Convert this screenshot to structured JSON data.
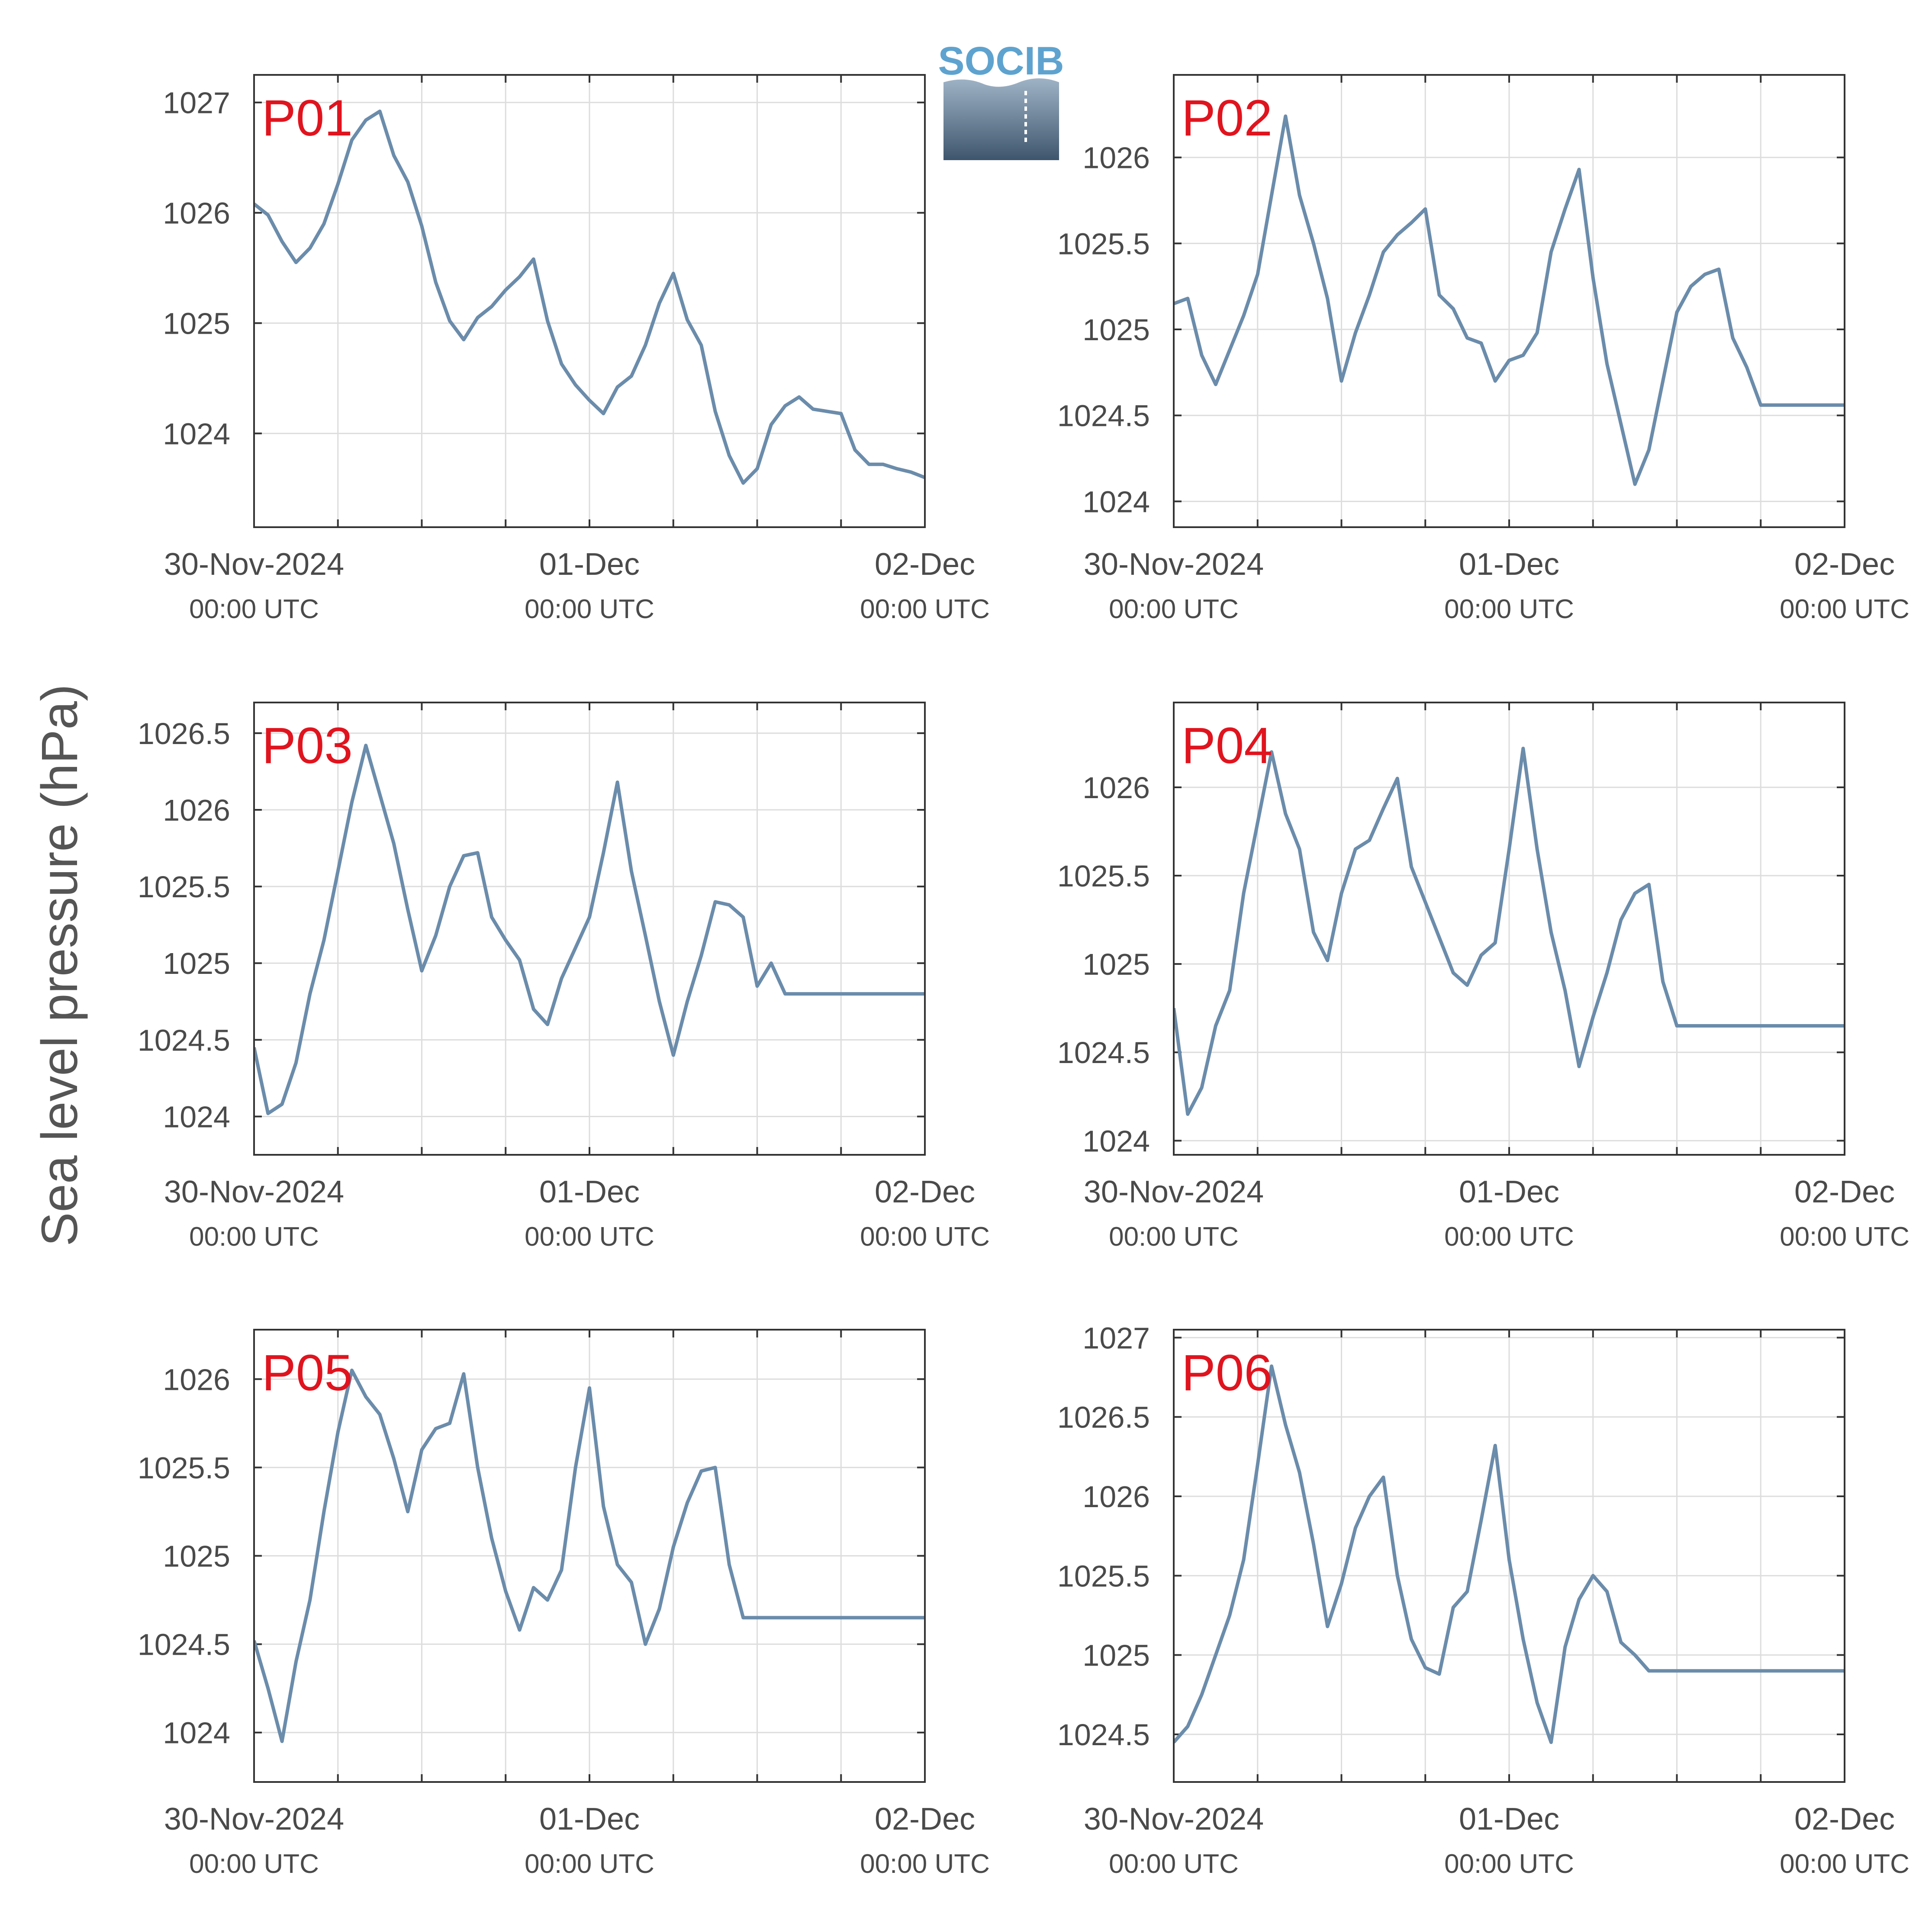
{
  "figure": {
    "ylabel": "Sea level pressure (hPa)",
    "logo_text": "SOCIB",
    "line_color": "#6b8cab",
    "label_color": "#e0141e",
    "grid_color": "#dddddd",
    "axis_color": "#333333"
  },
  "chart_data": [
    {
      "type": "line",
      "title": "P01",
      "x_range": [
        "2024-11-30 00:00",
        "2024-12-02 00:00"
      ],
      "x_ticks": [
        {
          "label": "30-Nov-2024",
          "sub": "00:00 UTC"
        },
        {
          "label": "01-Dec",
          "sub": "00:00 UTC"
        },
        {
          "label": "02-Dec",
          "sub": "00:00 UTC"
        }
      ],
      "y_ticks": [
        "1024",
        "1025",
        "1026",
        "1027"
      ],
      "ylim": [
        1023.15,
        1027.25
      ],
      "grid": true,
      "series": [
        {
          "x_hours": [
            0,
            1,
            2,
            3,
            4,
            5,
            6,
            7,
            8,
            9,
            10,
            11,
            12,
            13,
            14,
            15,
            16,
            17,
            18,
            19,
            20,
            21,
            22,
            23,
            24,
            25,
            26,
            27,
            28,
            29,
            30,
            31,
            32,
            33,
            34,
            35,
            36,
            37,
            38,
            39,
            40,
            41,
            42,
            43,
            44,
            45,
            46,
            47,
            48
          ],
          "values": [
            1026.08,
            1025.98,
            1025.74,
            1025.55,
            1025.68,
            1025.9,
            1026.26,
            1026.66,
            1026.84,
            1026.92,
            1026.52,
            1026.28,
            1025.88,
            1025.37,
            1025.02,
            1024.85,
            1025.05,
            1025.15,
            1025.3,
            1025.42,
            1025.58,
            1025.02,
            1024.63,
            1024.44,
            1024.3,
            1024.18,
            1024.42,
            1024.52,
            1024.8,
            1025.18,
            1025.45,
            1025.03,
            1024.8,
            1024.2,
            1023.8,
            1023.55,
            1023.68,
            1024.08,
            1024.25,
            1024.33,
            1024.22,
            1024.2,
            1024.18,
            1023.85,
            1023.72,
            1023.72,
            1023.68,
            1023.65,
            1023.6
          ]
        }
      ]
    },
    {
      "type": "line",
      "title": "P02",
      "x_range": [
        "2024-11-30 00:00",
        "2024-12-02 00:00"
      ],
      "x_ticks": [
        {
          "label": "30-Nov-2024",
          "sub": "00:00 UTC"
        },
        {
          "label": "01-Dec",
          "sub": "00:00 UTC"
        },
        {
          "label": "02-Dec",
          "sub": "00:00 UTC"
        }
      ],
      "y_ticks": [
        "1024",
        "1024.5",
        "1025",
        "1025.5",
        "1026"
      ],
      "ylim": [
        1023.85,
        1026.48
      ],
      "grid": true,
      "series": [
        {
          "x_hours": [
            0,
            1,
            2,
            3,
            4,
            5,
            6,
            7,
            8,
            9,
            10,
            11,
            12,
            13,
            14,
            15,
            16,
            17,
            18,
            19,
            20,
            21,
            22,
            23,
            24,
            25,
            26,
            27,
            28,
            29,
            30,
            31,
            32,
            33,
            34,
            35,
            36,
            37,
            38,
            39,
            40,
            41,
            42,
            43,
            44,
            45,
            46,
            47,
            48
          ],
          "values": [
            1025.15,
            1025.18,
            1024.85,
            1024.68,
            1024.88,
            1025.08,
            1025.32,
            1025.78,
            1026.24,
            1025.78,
            1025.5,
            1025.18,
            1024.7,
            1024.98,
            1025.2,
            1025.45,
            1025.55,
            1025.62,
            1025.7,
            1025.2,
            1025.12,
            1024.95,
            1024.92,
            1024.7,
            1024.82,
            1024.85,
            1024.98,
            1025.45,
            1025.7,
            1025.93,
            1025.3,
            1024.8,
            1024.45,
            1024.1,
            1024.3,
            1024.7,
            1025.1,
            1025.25,
            1025.32,
            1025.35,
            1024.95,
            1024.78,
            1024.56,
            1024.56,
            1024.56,
            1024.56,
            1024.56,
            1024.56,
            1024.56
          ]
        }
      ]
    },
    {
      "type": "line",
      "title": "P03",
      "x_range": [
        "2024-11-30 00:00",
        "2024-12-02 00:00"
      ],
      "x_ticks": [
        {
          "label": "30-Nov-2024",
          "sub": "00:00 UTC"
        },
        {
          "label": "01-Dec",
          "sub": "00:00 UTC"
        },
        {
          "label": "02-Dec",
          "sub": "00:00 UTC"
        }
      ],
      "y_ticks": [
        "1024",
        "1024.5",
        "1025",
        "1025.5",
        "1026",
        "1026.5"
      ],
      "ylim": [
        1023.75,
        1026.7
      ],
      "grid": true,
      "series": [
        {
          "x_hours": [
            0,
            1,
            2,
            3,
            4,
            5,
            6,
            7,
            8,
            9,
            10,
            11,
            12,
            13,
            14,
            15,
            16,
            17,
            18,
            19,
            20,
            21,
            22,
            23,
            24,
            25,
            26,
            27,
            28,
            29,
            30,
            31,
            32,
            33,
            34,
            35,
            36,
            37,
            38,
            39,
            40,
            41,
            42,
            43,
            44,
            45,
            46,
            47,
            48
          ],
          "values": [
            1024.45,
            1024.02,
            1024.08,
            1024.35,
            1024.8,
            1025.15,
            1025.6,
            1026.05,
            1026.42,
            1026.1,
            1025.78,
            1025.35,
            1024.95,
            1025.18,
            1025.5,
            1025.7,
            1025.72,
            1025.3,
            1025.15,
            1025.02,
            1024.7,
            1024.6,
            1024.9,
            1025.1,
            1025.3,
            1025.72,
            1026.18,
            1025.6,
            1025.18,
            1024.75,
            1024.4,
            1024.75,
            1025.05,
            1025.4,
            1025.38,
            1025.3,
            1024.85,
            1025.0,
            1024.8,
            1024.8,
            1024.8,
            1024.8,
            1024.8,
            1024.8,
            1024.8,
            1024.8,
            1024.8,
            1024.8,
            1024.8
          ]
        }
      ]
    },
    {
      "type": "line",
      "title": "P04",
      "x_range": [
        "2024-11-30 00:00",
        "2024-12-02 00:00"
      ],
      "x_ticks": [
        {
          "label": "30-Nov-2024",
          "sub": "00:00 UTC"
        },
        {
          "label": "01-Dec",
          "sub": "00:00 UTC"
        },
        {
          "label": "02-Dec",
          "sub": "00:00 UTC"
        }
      ],
      "y_ticks": [
        "1024",
        "1024.5",
        "1025",
        "1025.5",
        "1026"
      ],
      "ylim": [
        1023.92,
        1026.48
      ],
      "grid": true,
      "series": [
        {
          "x_hours": [
            0,
            1,
            2,
            3,
            4,
            5,
            6,
            7,
            8,
            9,
            10,
            11,
            12,
            13,
            14,
            15,
            16,
            17,
            18,
            19,
            20,
            21,
            22,
            23,
            24,
            25,
            26,
            27,
            28,
            29,
            30,
            31,
            32,
            33,
            34,
            35,
            36,
            37,
            38,
            39,
            40,
            41,
            42,
            43,
            44,
            45,
            46,
            47,
            48
          ],
          "values": [
            1024.75,
            1024.15,
            1024.3,
            1024.65,
            1024.85,
            1025.4,
            1025.8,
            1026.2,
            1025.85,
            1025.65,
            1025.18,
            1025.02,
            1025.4,
            1025.65,
            1025.7,
            1025.88,
            1026.05,
            1025.55,
            1025.35,
            1025.15,
            1024.95,
            1024.88,
            1025.05,
            1025.12,
            1025.65,
            1026.22,
            1025.65,
            1025.18,
            1024.85,
            1024.42,
            1024.7,
            1024.95,
            1025.25,
            1025.4,
            1025.45,
            1024.9,
            1024.65,
            1024.65,
            1024.65,
            1024.65,
            1024.65,
            1024.65,
            1024.65,
            1024.65,
            1024.65,
            1024.65,
            1024.65,
            1024.65,
            1024.65
          ]
        }
      ]
    },
    {
      "type": "line",
      "title": "P05",
      "x_range": [
        "2024-11-30 00:00",
        "2024-12-02 00:00"
      ],
      "x_ticks": [
        {
          "label": "30-Nov-2024",
          "sub": "00:00 UTC"
        },
        {
          "label": "01-Dec",
          "sub": "00:00 UTC"
        },
        {
          "label": "02-Dec",
          "sub": "00:00 UTC"
        }
      ],
      "y_ticks": [
        "1024",
        "1024.5",
        "1025",
        "1025.5",
        "1026"
      ],
      "ylim": [
        1023.72,
        1026.28
      ],
      "grid": true,
      "series": [
        {
          "x_hours": [
            0,
            1,
            2,
            3,
            4,
            5,
            6,
            7,
            8,
            9,
            10,
            11,
            12,
            13,
            14,
            15,
            16,
            17,
            18,
            19,
            20,
            21,
            22,
            23,
            24,
            25,
            26,
            27,
            28,
            29,
            30,
            31,
            32,
            33,
            34,
            35,
            36,
            37,
            38,
            39,
            40,
            41,
            42,
            43,
            44,
            45,
            46,
            47,
            48
          ],
          "values": [
            1024.52,
            1024.25,
            1023.95,
            1024.4,
            1024.75,
            1025.25,
            1025.7,
            1026.05,
            1025.9,
            1025.8,
            1025.55,
            1025.25,
            1025.6,
            1025.72,
            1025.75,
            1026.03,
            1025.5,
            1025.1,
            1024.8,
            1024.58,
            1024.82,
            1024.75,
            1024.92,
            1025.5,
            1025.95,
            1025.28,
            1024.95,
            1024.85,
            1024.5,
            1024.7,
            1025.05,
            1025.3,
            1025.48,
            1025.5,
            1024.95,
            1024.65,
            1024.65,
            1024.65,
            1024.65,
            1024.65,
            1024.65,
            1024.65,
            1024.65,
            1024.65,
            1024.65,
            1024.65,
            1024.65,
            1024.65,
            1024.65
          ]
        }
      ]
    },
    {
      "type": "line",
      "title": "P06",
      "x_range": [
        "2024-11-30 00:00",
        "2024-12-02 00:00"
      ],
      "x_ticks": [
        {
          "label": "30-Nov-2024",
          "sub": "00:00 UTC"
        },
        {
          "label": "01-Dec",
          "sub": "00:00 UTC"
        },
        {
          "label": "02-Dec",
          "sub": "00:00 UTC"
        }
      ],
      "y_ticks": [
        "1024.5",
        "1025",
        "1025.5",
        "1026",
        "1026.5",
        "1027"
      ],
      "ylim": [
        1024.2,
        1027.05
      ],
      "grid": true,
      "series": [
        {
          "x_hours": [
            0,
            1,
            2,
            3,
            4,
            5,
            6,
            7,
            8,
            9,
            10,
            11,
            12,
            13,
            14,
            15,
            16,
            17,
            18,
            19,
            20,
            21,
            22,
            23,
            24,
            25,
            26,
            27,
            28,
            29,
            30,
            31,
            32,
            33,
            34,
            35,
            36,
            37,
            38,
            39,
            40,
            41,
            42,
            43,
            44,
            45,
            46,
            47,
            48
          ],
          "values": [
            1024.45,
            1024.55,
            1024.75,
            1025.0,
            1025.25,
            1025.6,
            1026.2,
            1026.82,
            1026.45,
            1026.15,
            1025.7,
            1025.18,
            1025.45,
            1025.8,
            1026.0,
            1026.12,
            1025.5,
            1025.1,
            1024.92,
            1024.88,
            1025.3,
            1025.4,
            1025.85,
            1026.32,
            1025.6,
            1025.1,
            1024.7,
            1024.45,
            1025.05,
            1025.35,
            1025.5,
            1025.4,
            1025.08,
            1025.0,
            1024.9,
            1024.9,
            1024.9,
            1024.9,
            1024.9,
            1024.9,
            1024.9,
            1024.9,
            1024.9,
            1024.9,
            1024.9,
            1024.9,
            1024.9,
            1024.9,
            1024.9
          ]
        }
      ]
    }
  ]
}
